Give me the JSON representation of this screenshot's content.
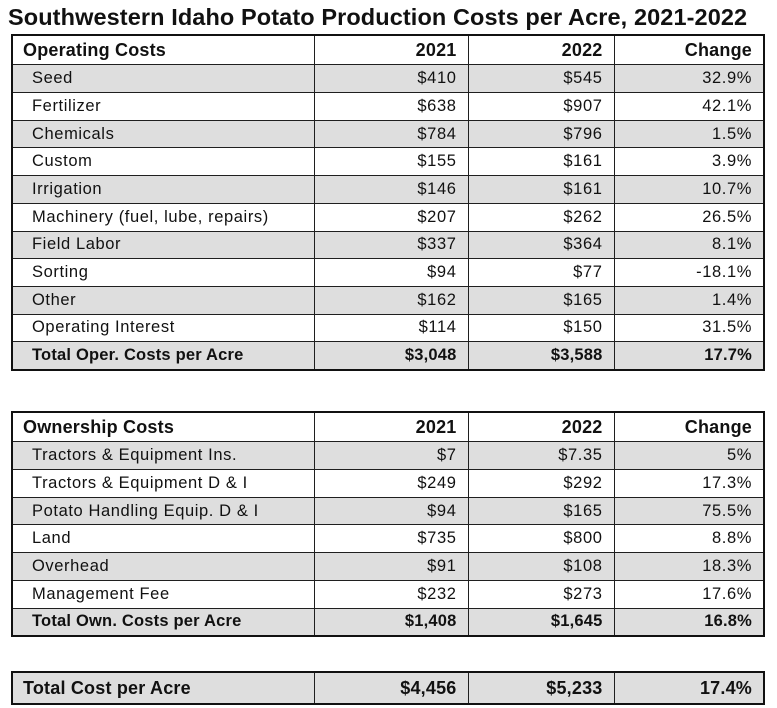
{
  "title": "Southwestern Idaho Potato Production Costs per Acre, 2021-2022",
  "operating": {
    "header": [
      "Operating Costs",
      "2021",
      "2022",
      "Change"
    ],
    "rows": [
      [
        "Seed",
        "$410",
        "$545",
        "32.9%"
      ],
      [
        "Fertilizer",
        "$638",
        "$907",
        "42.1%"
      ],
      [
        "Chemicals",
        "$784",
        "$796",
        "1.5%"
      ],
      [
        "Custom",
        "$155",
        "$161",
        "3.9%"
      ],
      [
        "Irrigation",
        "$146",
        "$161",
        "10.7%"
      ],
      [
        "Machinery (fuel, lube, repairs)",
        "$207",
        "$262",
        "26.5%"
      ],
      [
        "Field Labor",
        "$337",
        "$364",
        "8.1%"
      ],
      [
        "Sorting",
        "$94",
        "$77",
        "-18.1%"
      ],
      [
        "Other",
        "$162",
        "$165",
        "1.4%"
      ],
      [
        "Operating Interest",
        "$114",
        "$150",
        "31.5%"
      ]
    ],
    "total": [
      "Total Oper. Costs per Acre",
      "$3,048",
      "$3,588",
      "17.7%"
    ]
  },
  "ownership": {
    "header": [
      "Ownership Costs",
      "2021",
      "2022",
      "Change"
    ],
    "rows": [
      [
        "Tractors & Equipment Ins.",
        "$7",
        "$7.35",
        "5%"
      ],
      [
        "Tractors & Equipment D & I",
        "$249",
        "$292",
        "17.3%"
      ],
      [
        "Potato Handling Equip. D & I",
        "$94",
        "$165",
        "75.5%"
      ],
      [
        "Land",
        "$735",
        "$800",
        "8.8%"
      ],
      [
        "Overhead",
        "$91",
        "$108",
        "18.3%"
      ],
      [
        "Management Fee",
        "$232",
        "$273",
        "17.6%"
      ]
    ],
    "total": [
      "Total Own. Costs per Acre",
      "$1,408",
      "$1,645",
      "16.8%"
    ]
  },
  "grand_total": [
    "Total Cost per Acre",
    "$4,456",
    "$5,233",
    "17.4%"
  ]
}
